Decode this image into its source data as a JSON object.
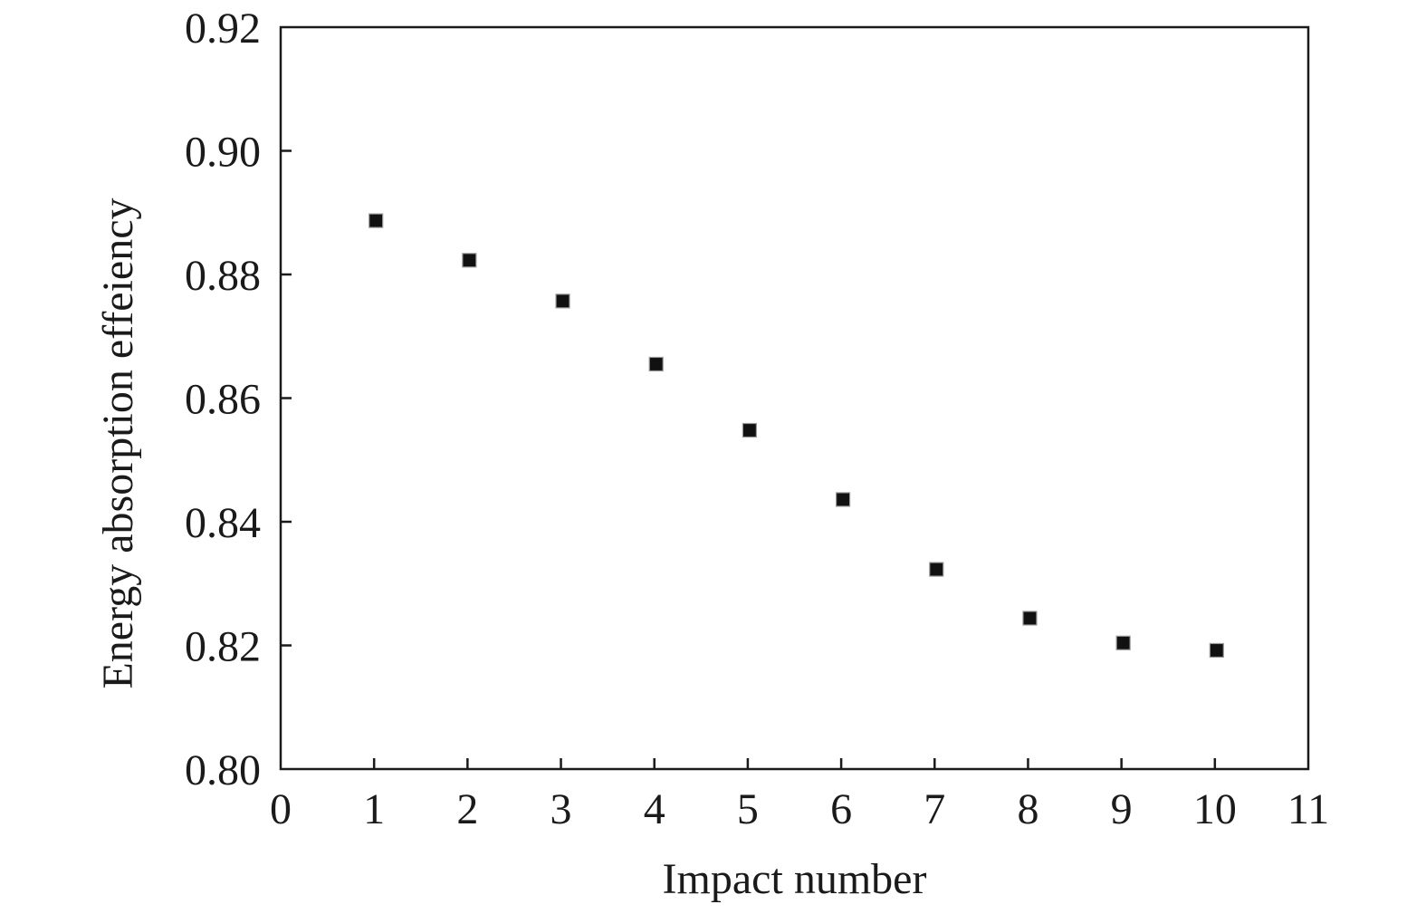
{
  "chart_data": {
    "type": "scatter",
    "title": "",
    "xlabel": "Impact number",
    "ylabel": "Energy absorption effeiency",
    "xlim": [
      0,
      11
    ],
    "ylim": [
      0.8,
      0.92
    ],
    "xticks": [
      "0",
      "1",
      "2",
      "3",
      "4",
      "5",
      "6",
      "7",
      "8",
      "9",
      "10",
      "11"
    ],
    "yticks": [
      "0.80",
      "0.82",
      "0.84",
      "0.86",
      "0.88",
      "0.90",
      "0.92"
    ],
    "grid": false,
    "marker": "square",
    "marker_color": "#111111",
    "series": [
      {
        "x": [
          1,
          2,
          3,
          4,
          5,
          6,
          7,
          8,
          9,
          10
        ],
        "y": [
          0.8887,
          0.8823,
          0.8757,
          0.8655,
          0.8548,
          0.8436,
          0.8323,
          0.8244,
          0.8204,
          0.8192
        ]
      }
    ]
  }
}
